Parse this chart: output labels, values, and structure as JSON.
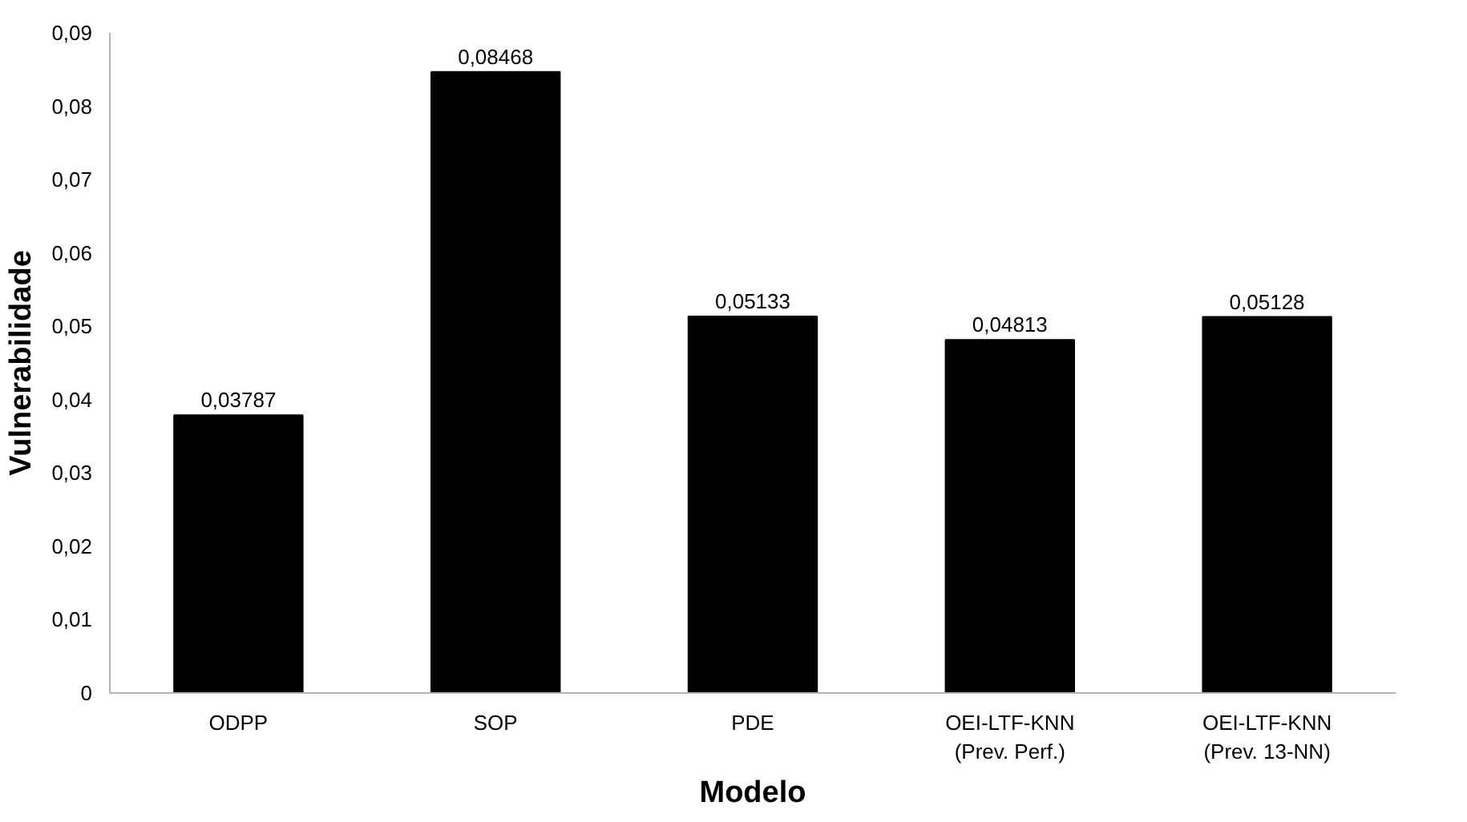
{
  "chart_data": {
    "type": "bar",
    "xlabel": "Modelo",
    "ylabel": "Vulnerabilidade",
    "categories": [
      "ODPP",
      "SOP",
      "PDE",
      "OEI-LTF-KNN\n(Prev. Perf.)",
      "OEI-LTF-KNN\n(Prev. 13-NN)"
    ],
    "values": [
      0.03787,
      0.08468,
      0.05133,
      0.04813,
      0.05128
    ],
    "value_labels": [
      "0,03787",
      "0,08468",
      "0,05133",
      "0,04813",
      "0,05128"
    ],
    "color": "#000000",
    "ylim": [
      0,
      0.09
    ],
    "yticks": [
      0,
      {
        "value": 0.01,
        "label": "0,01"
      },
      {
        "value": 0.02,
        "label": "0,02"
      },
      {
        "value": 0.03,
        "label": "0,03"
      },
      {
        "value": 0.04,
        "label": "0,04"
      },
      {
        "value": 0.05,
        "label": "0,05"
      },
      {
        "value": 0.06,
        "label": "0,06"
      },
      {
        "value": 0.07,
        "label": "0,07"
      },
      {
        "value": 0.08,
        "label": "0,08"
      },
      {
        "value": 0.09,
        "label": "0,09"
      }
    ],
    "grid": false
  }
}
